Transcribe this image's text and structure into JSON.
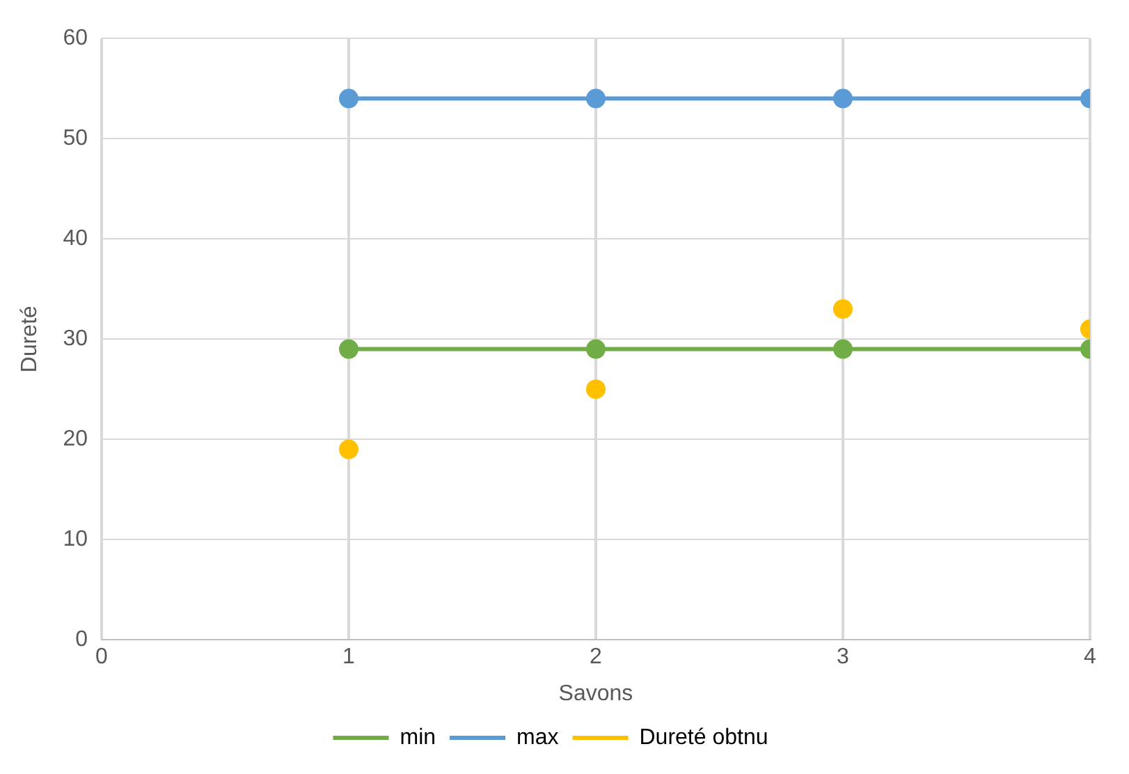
{
  "chart_data": {
    "type": "line",
    "xlabel": "Savons",
    "ylabel": "Dureté",
    "x": [
      1,
      2,
      3,
      4
    ],
    "series": [
      {
        "name": "min",
        "color": "#70ad47",
        "values": [
          29,
          29,
          29,
          29
        ]
      },
      {
        "name": "max",
        "color": "#5b9bd5",
        "values": [
          54,
          54,
          54,
          54
        ]
      },
      {
        "name": "Dureté obtnu",
        "type": "scatter",
        "color": "#ffc000",
        "values": [
          19,
          25,
          33,
          31
        ]
      }
    ],
    "xlim": [
      0,
      4
    ],
    "xticks": [
      0,
      1,
      2,
      3,
      4
    ],
    "ylim": [
      0,
      60
    ],
    "yticks": [
      0,
      10,
      20,
      30,
      40,
      50,
      60
    ],
    "grid": true,
    "legend": "bottom",
    "marker": "circle",
    "line_style": "solid"
  }
}
